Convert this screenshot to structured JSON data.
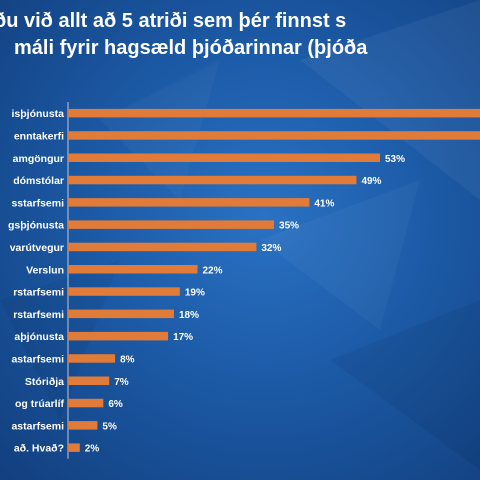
{
  "title": {
    "line1": "ðu við allt að 5 atriði sem þér finnst s",
    "line2": "máli fyrir hagsæld þjóðarinnar (þjóða"
  },
  "colors": {
    "bar": "#e07b39",
    "text": "#ffffff",
    "axis": "#b8c8e0"
  },
  "chart_data": {
    "type": "bar",
    "orientation": "horizontal",
    "categories": [
      "isþjónusta",
      "enntakerfi",
      "amgöngur",
      "dómstólar",
      "sstarfsemi",
      "gsþjónusta",
      "varútvegur",
      "Verslun",
      "rstarfsemi",
      "rstarfsemi",
      "aþjónusta",
      "astarfsemi",
      "Stóriðja",
      "og trúarlíf",
      "astarfsemi",
      "að. Hvað?"
    ],
    "values": [
      null,
      null,
      53,
      49,
      41,
      35,
      32,
      22,
      19,
      18,
      17,
      8,
      7,
      6,
      5,
      2
    ],
    "labels": [
      "",
      "",
      "53%",
      "49%",
      "41%",
      "35%",
      "32%",
      "22%",
      "19%",
      "18%",
      "17%",
      "8%",
      "7%",
      "6%",
      "5%",
      "2%"
    ],
    "xlim": [
      0,
      65
    ],
    "grid": false
  }
}
